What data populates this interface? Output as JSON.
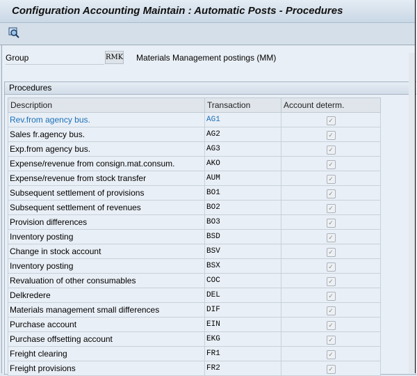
{
  "title": "Configuration Accounting Maintain : Automatic Posts - Procedures",
  "toolbar": {
    "icon": "display-magnifier-icon"
  },
  "group": {
    "label": "Group",
    "value": "RMK",
    "description": "Materials Management postings (MM)"
  },
  "panel": {
    "title": "Procedures"
  },
  "table": {
    "columns": [
      "Description",
      "Transaction",
      "Account determ."
    ],
    "rows": [
      {
        "description": "Rev.from agency bus.",
        "transaction": "AG1",
        "account_determ": true
      },
      {
        "description": "Sales fr.agency bus.",
        "transaction": "AG2",
        "account_determ": true
      },
      {
        "description": "Exp.from agency bus.",
        "transaction": "AG3",
        "account_determ": true
      },
      {
        "description": "Expense/revenue from consign.mat.consum.",
        "transaction": "AKO",
        "account_determ": true
      },
      {
        "description": "Expense/revenue from stock transfer",
        "transaction": "AUM",
        "account_determ": true
      },
      {
        "description": "Subsequent settlement of provisions",
        "transaction": "BO1",
        "account_determ": true
      },
      {
        "description": "Subsequent settlement of revenues",
        "transaction": "BO2",
        "account_determ": true
      },
      {
        "description": "Provision differences",
        "transaction": "BO3",
        "account_determ": true
      },
      {
        "description": "Inventory posting",
        "transaction": "BSD",
        "account_determ": true
      },
      {
        "description": "Change in stock account",
        "transaction": "BSV",
        "account_determ": true
      },
      {
        "description": "Inventory posting",
        "transaction": "BSX",
        "account_determ": true
      },
      {
        "description": "Revaluation of other consumables",
        "transaction": "COC",
        "account_determ": true
      },
      {
        "description": "Delkredere",
        "transaction": "DEL",
        "account_determ": true
      },
      {
        "description": "Materials management small differences",
        "transaction": "DIF",
        "account_determ": true
      },
      {
        "description": "Purchase account",
        "transaction": "EIN",
        "account_determ": true
      },
      {
        "description": "Purchase offsetting account",
        "transaction": "EKG",
        "account_determ": true
      },
      {
        "description": "Freight clearing",
        "transaction": "FR1",
        "account_determ": true
      },
      {
        "description": "Freight provisions",
        "transaction": "FR2",
        "account_determ": true
      }
    ]
  }
}
